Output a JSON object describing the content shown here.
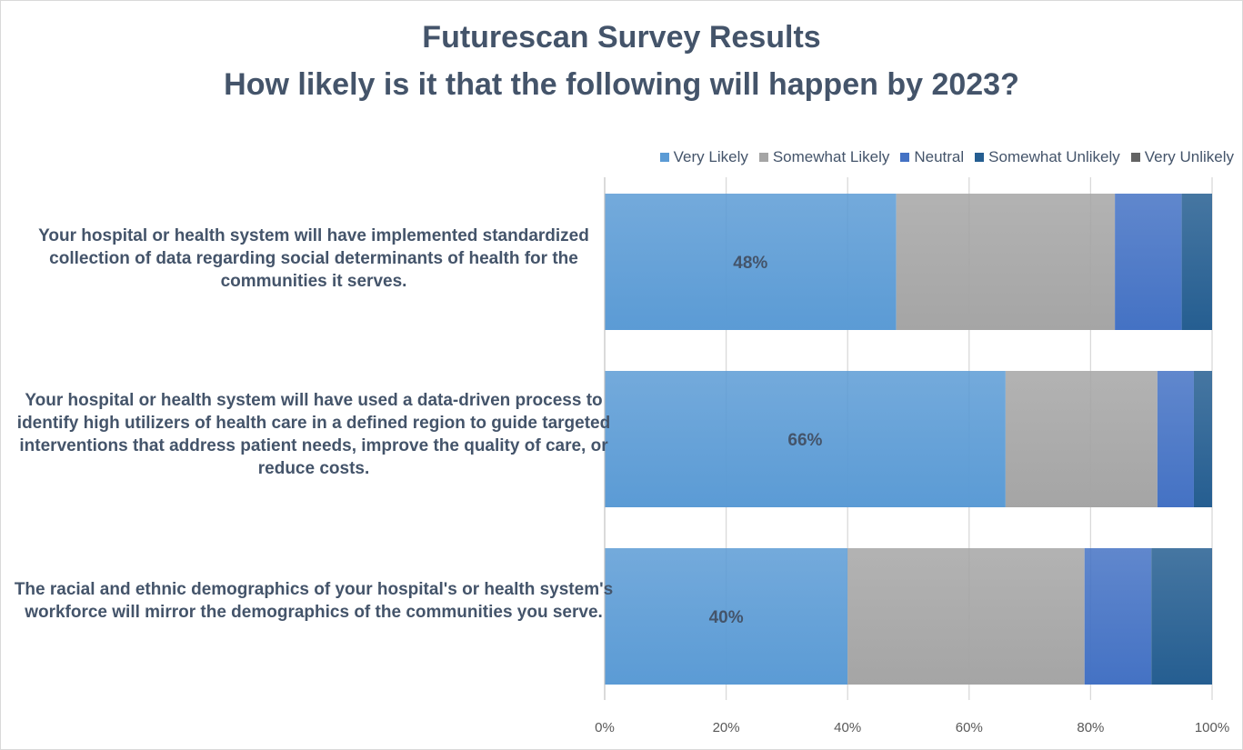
{
  "chart_data": {
    "type": "bar",
    "orientation": "horizontal",
    "stacked": "100%",
    "title": "Futurescan Survey Results",
    "subtitle": "How likely is it that the following will happen by 2023?",
    "categories": [
      "Your hospital or health system will have implemented standardized collection of data regarding social determinants of health for the communities it serves.",
      "Your hospital or health system will have used a data-driven process to identify high utilizers of health care in a defined region to guide targeted interventions that address patient needs, improve the quality of care, or reduce costs.",
      "The racial and ethnic demographics of your hospital's or health system's workforce will mirror the demographics of the communities you serve."
    ],
    "series": [
      {
        "name": "Very Likely",
        "color": "#5b9bd5",
        "values": [
          48,
          66,
          40
        ],
        "labels": [
          "48%",
          "66%",
          "40%"
        ]
      },
      {
        "name": "Somewhat Likely",
        "color": "#a5a5a5",
        "values": [
          36,
          25,
          39
        ]
      },
      {
        "name": "Neutral",
        "color": "#4472c4",
        "values": [
          11,
          6,
          11
        ]
      },
      {
        "name": "Somewhat Unlikely",
        "color": "#255e91",
        "values": [
          5,
          3,
          10
        ]
      },
      {
        "name": "Very Unlikely",
        "color": "#636363",
        "values": [
          0,
          0,
          0
        ]
      }
    ],
    "xlim": [
      0,
      100
    ],
    "xticks": [
      "0%",
      "20%",
      "40%",
      "60%",
      "80%",
      "100%"
    ],
    "grid": true,
    "legend": "top-right"
  }
}
